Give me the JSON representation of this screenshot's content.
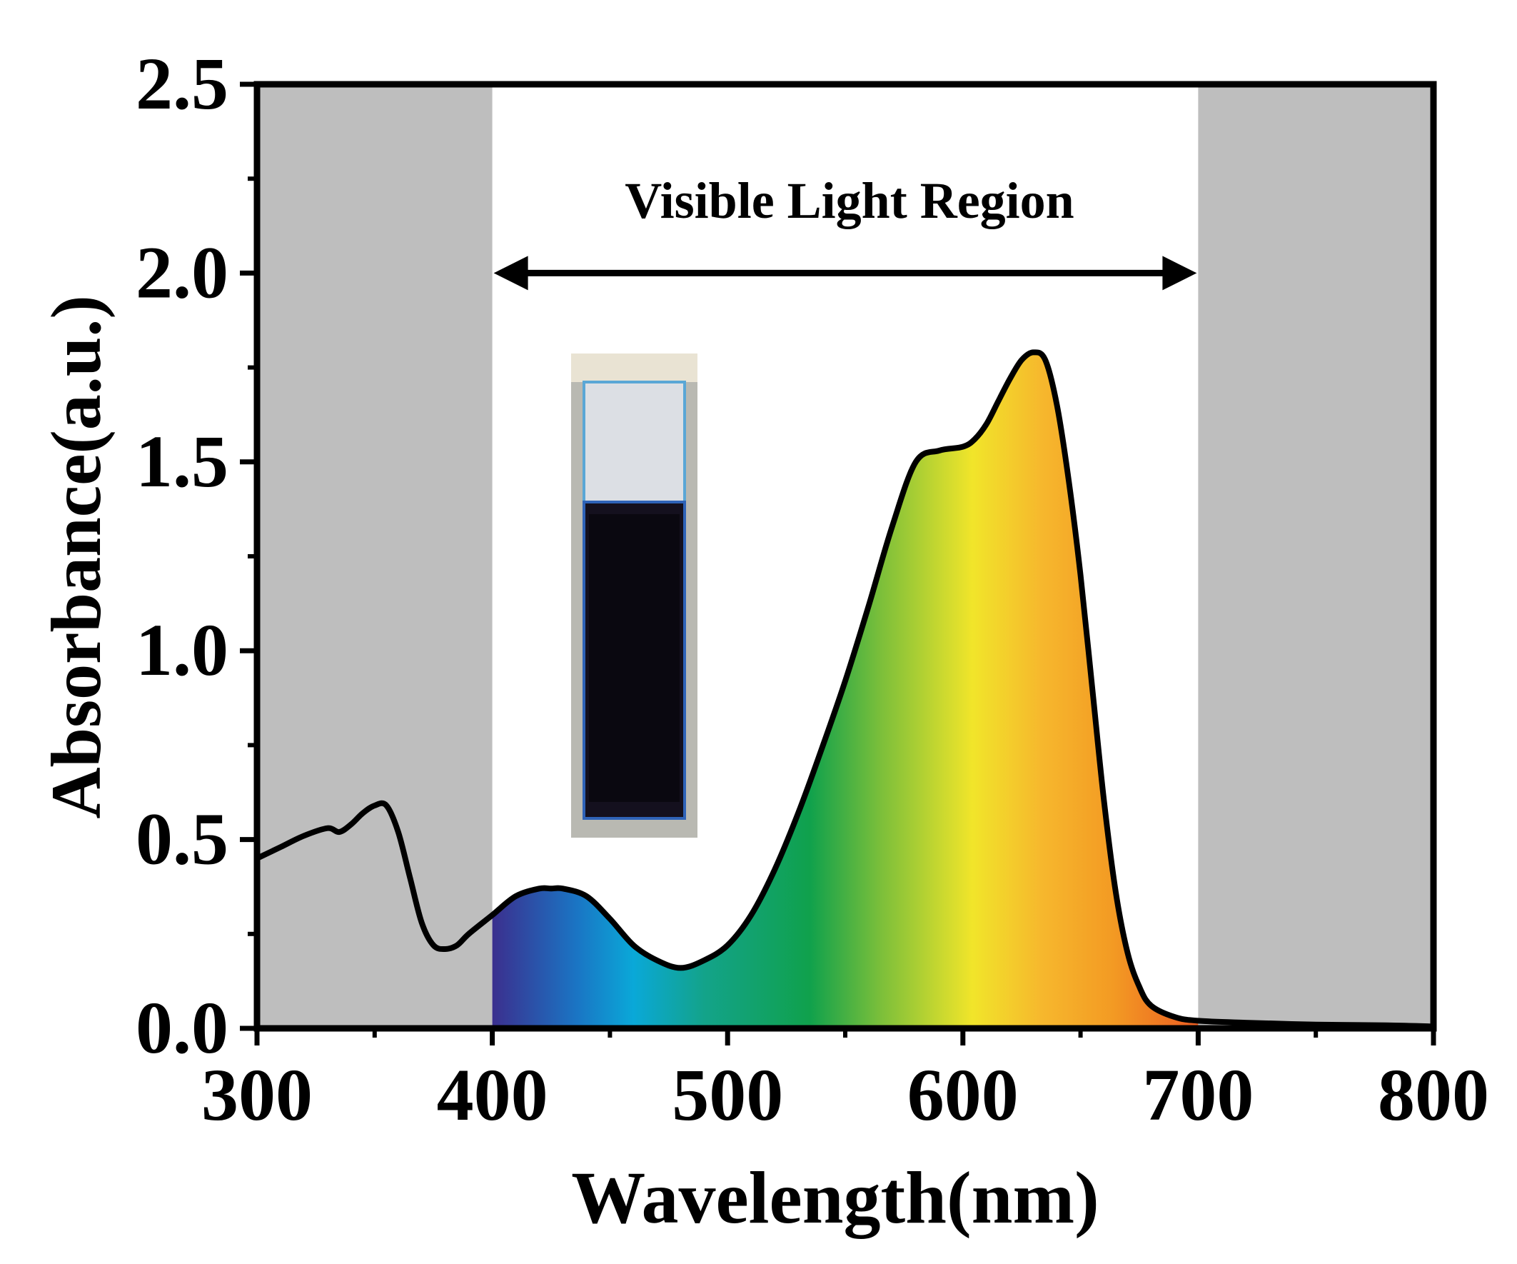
{
  "chart_data": {
    "type": "area",
    "title": "",
    "xlabel": "Wavelength(nm)",
    "ylabel": "Absorbance(a.u.)",
    "xlim": [
      300,
      800
    ],
    "ylim": [
      0,
      2.5
    ],
    "x_ticks": [
      "300",
      "400",
      "500",
      "600",
      "700",
      "800"
    ],
    "y_ticks": [
      "0.0",
      "0.5",
      "1.0",
      "1.5",
      "2.0",
      "2.5"
    ],
    "grid": false,
    "annotation": "Visible Light Region",
    "visible_region": [
      400,
      700
    ],
    "series": [
      {
        "x": [
          300,
          310,
          320,
          330,
          335,
          340,
          345,
          350,
          355,
          360,
          365,
          370,
          375,
          380,
          385,
          390,
          400,
          410,
          420,
          425,
          430,
          440,
          450,
          460,
          470,
          480,
          490,
          500,
          510,
          520,
          530,
          540,
          550,
          560,
          570,
          580,
          590,
          600,
          605,
          610,
          615,
          620,
          625,
          630,
          635,
          640,
          645,
          650,
          655,
          660,
          665,
          670,
          675,
          680,
          690,
          700,
          720,
          750,
          780,
          800
        ],
        "y": [
          0.45,
          0.48,
          0.51,
          0.53,
          0.52,
          0.54,
          0.57,
          0.59,
          0.59,
          0.52,
          0.4,
          0.28,
          0.22,
          0.21,
          0.22,
          0.25,
          0.3,
          0.35,
          0.37,
          0.37,
          0.37,
          0.35,
          0.29,
          0.22,
          0.18,
          0.16,
          0.18,
          0.22,
          0.3,
          0.42,
          0.57,
          0.74,
          0.92,
          1.12,
          1.33,
          1.5,
          1.53,
          1.54,
          1.56,
          1.6,
          1.66,
          1.72,
          1.77,
          1.79,
          1.77,
          1.65,
          1.45,
          1.2,
          0.9,
          0.6,
          0.36,
          0.2,
          0.11,
          0.06,
          0.03,
          0.02,
          0.015,
          0.01,
          0.008,
          0.005
        ]
      }
    ],
    "colors": {
      "uv_ir_region": "#bebebe",
      "line": "#000000",
      "spectrum": [
        "#3b2f8e",
        "#1a75c4",
        "#0aa8d8",
        "#13a38a",
        "#10a14c",
        "#7bbf3a",
        "#f1e52a",
        "#f6b72d",
        "#f39a23",
        "#ec5d22"
      ]
    }
  }
}
